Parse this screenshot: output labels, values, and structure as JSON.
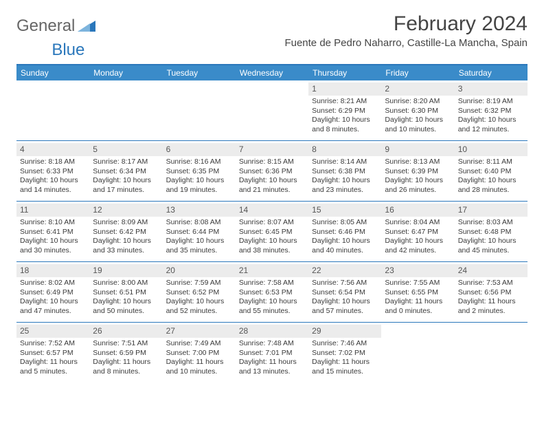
{
  "brand": {
    "part1": "General",
    "part2": "Blue"
  },
  "title": "February 2024",
  "location": "Fuente de Pedro Naharro, Castille-La Mancha, Spain",
  "colors": {
    "header_bg": "#3a8bc9",
    "border": "#2a77bb",
    "daynum_bg": "#ececec",
    "text": "#3a3a3a"
  },
  "dow": [
    "Sunday",
    "Monday",
    "Tuesday",
    "Wednesday",
    "Thursday",
    "Friday",
    "Saturday"
  ],
  "weeks": [
    [
      {
        "n": "",
        "sunrise": "",
        "sunset": "",
        "daylight": ""
      },
      {
        "n": "",
        "sunrise": "",
        "sunset": "",
        "daylight": ""
      },
      {
        "n": "",
        "sunrise": "",
        "sunset": "",
        "daylight": ""
      },
      {
        "n": "",
        "sunrise": "",
        "sunset": "",
        "daylight": ""
      },
      {
        "n": "1",
        "sunrise": "Sunrise: 8:21 AM",
        "sunset": "Sunset: 6:29 PM",
        "daylight": "Daylight: 10 hours and 8 minutes."
      },
      {
        "n": "2",
        "sunrise": "Sunrise: 8:20 AM",
        "sunset": "Sunset: 6:30 PM",
        "daylight": "Daylight: 10 hours and 10 minutes."
      },
      {
        "n": "3",
        "sunrise": "Sunrise: 8:19 AM",
        "sunset": "Sunset: 6:32 PM",
        "daylight": "Daylight: 10 hours and 12 minutes."
      }
    ],
    [
      {
        "n": "4",
        "sunrise": "Sunrise: 8:18 AM",
        "sunset": "Sunset: 6:33 PM",
        "daylight": "Daylight: 10 hours and 14 minutes."
      },
      {
        "n": "5",
        "sunrise": "Sunrise: 8:17 AM",
        "sunset": "Sunset: 6:34 PM",
        "daylight": "Daylight: 10 hours and 17 minutes."
      },
      {
        "n": "6",
        "sunrise": "Sunrise: 8:16 AM",
        "sunset": "Sunset: 6:35 PM",
        "daylight": "Daylight: 10 hours and 19 minutes."
      },
      {
        "n": "7",
        "sunrise": "Sunrise: 8:15 AM",
        "sunset": "Sunset: 6:36 PM",
        "daylight": "Daylight: 10 hours and 21 minutes."
      },
      {
        "n": "8",
        "sunrise": "Sunrise: 8:14 AM",
        "sunset": "Sunset: 6:38 PM",
        "daylight": "Daylight: 10 hours and 23 minutes."
      },
      {
        "n": "9",
        "sunrise": "Sunrise: 8:13 AM",
        "sunset": "Sunset: 6:39 PM",
        "daylight": "Daylight: 10 hours and 26 minutes."
      },
      {
        "n": "10",
        "sunrise": "Sunrise: 8:11 AM",
        "sunset": "Sunset: 6:40 PM",
        "daylight": "Daylight: 10 hours and 28 minutes."
      }
    ],
    [
      {
        "n": "11",
        "sunrise": "Sunrise: 8:10 AM",
        "sunset": "Sunset: 6:41 PM",
        "daylight": "Daylight: 10 hours and 30 minutes."
      },
      {
        "n": "12",
        "sunrise": "Sunrise: 8:09 AM",
        "sunset": "Sunset: 6:42 PM",
        "daylight": "Daylight: 10 hours and 33 minutes."
      },
      {
        "n": "13",
        "sunrise": "Sunrise: 8:08 AM",
        "sunset": "Sunset: 6:44 PM",
        "daylight": "Daylight: 10 hours and 35 minutes."
      },
      {
        "n": "14",
        "sunrise": "Sunrise: 8:07 AM",
        "sunset": "Sunset: 6:45 PM",
        "daylight": "Daylight: 10 hours and 38 minutes."
      },
      {
        "n": "15",
        "sunrise": "Sunrise: 8:05 AM",
        "sunset": "Sunset: 6:46 PM",
        "daylight": "Daylight: 10 hours and 40 minutes."
      },
      {
        "n": "16",
        "sunrise": "Sunrise: 8:04 AM",
        "sunset": "Sunset: 6:47 PM",
        "daylight": "Daylight: 10 hours and 42 minutes."
      },
      {
        "n": "17",
        "sunrise": "Sunrise: 8:03 AM",
        "sunset": "Sunset: 6:48 PM",
        "daylight": "Daylight: 10 hours and 45 minutes."
      }
    ],
    [
      {
        "n": "18",
        "sunrise": "Sunrise: 8:02 AM",
        "sunset": "Sunset: 6:49 PM",
        "daylight": "Daylight: 10 hours and 47 minutes."
      },
      {
        "n": "19",
        "sunrise": "Sunrise: 8:00 AM",
        "sunset": "Sunset: 6:51 PM",
        "daylight": "Daylight: 10 hours and 50 minutes."
      },
      {
        "n": "20",
        "sunrise": "Sunrise: 7:59 AM",
        "sunset": "Sunset: 6:52 PM",
        "daylight": "Daylight: 10 hours and 52 minutes."
      },
      {
        "n": "21",
        "sunrise": "Sunrise: 7:58 AM",
        "sunset": "Sunset: 6:53 PM",
        "daylight": "Daylight: 10 hours and 55 minutes."
      },
      {
        "n": "22",
        "sunrise": "Sunrise: 7:56 AM",
        "sunset": "Sunset: 6:54 PM",
        "daylight": "Daylight: 10 hours and 57 minutes."
      },
      {
        "n": "23",
        "sunrise": "Sunrise: 7:55 AM",
        "sunset": "Sunset: 6:55 PM",
        "daylight": "Daylight: 11 hours and 0 minutes."
      },
      {
        "n": "24",
        "sunrise": "Sunrise: 7:53 AM",
        "sunset": "Sunset: 6:56 PM",
        "daylight": "Daylight: 11 hours and 2 minutes."
      }
    ],
    [
      {
        "n": "25",
        "sunrise": "Sunrise: 7:52 AM",
        "sunset": "Sunset: 6:57 PM",
        "daylight": "Daylight: 11 hours and 5 minutes."
      },
      {
        "n": "26",
        "sunrise": "Sunrise: 7:51 AM",
        "sunset": "Sunset: 6:59 PM",
        "daylight": "Daylight: 11 hours and 8 minutes."
      },
      {
        "n": "27",
        "sunrise": "Sunrise: 7:49 AM",
        "sunset": "Sunset: 7:00 PM",
        "daylight": "Daylight: 11 hours and 10 minutes."
      },
      {
        "n": "28",
        "sunrise": "Sunrise: 7:48 AM",
        "sunset": "Sunset: 7:01 PM",
        "daylight": "Daylight: 11 hours and 13 minutes."
      },
      {
        "n": "29",
        "sunrise": "Sunrise: 7:46 AM",
        "sunset": "Sunset: 7:02 PM",
        "daylight": "Daylight: 11 hours and 15 minutes."
      },
      {
        "n": "",
        "sunrise": "",
        "sunset": "",
        "daylight": ""
      },
      {
        "n": "",
        "sunrise": "",
        "sunset": "",
        "daylight": ""
      }
    ]
  ]
}
